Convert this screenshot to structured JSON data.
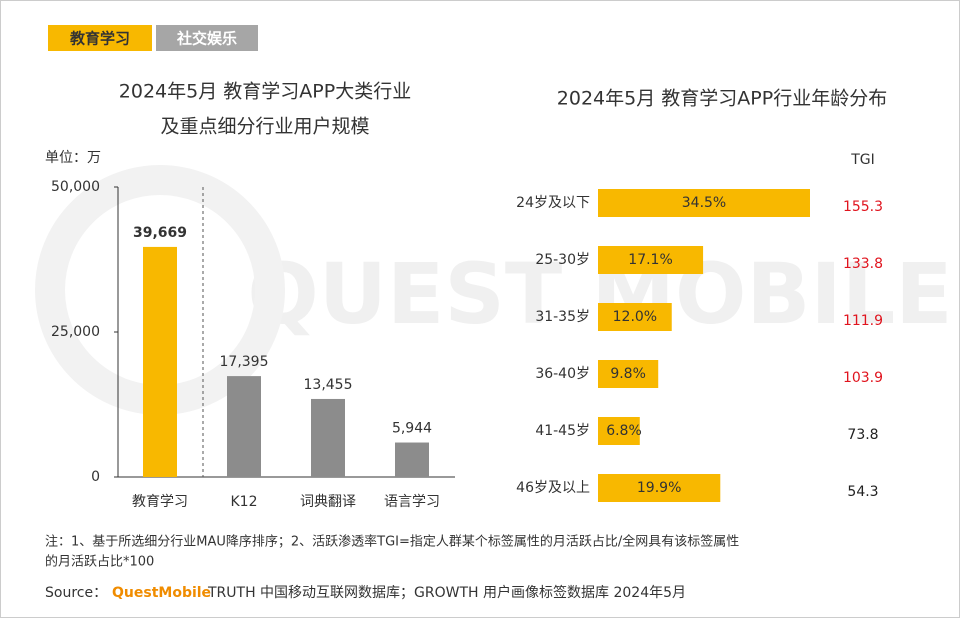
{
  "tabs": [
    "教育学习",
    "社交娱乐"
  ],
  "watermark": "QUEST MOBILE",
  "chart_data": [
    {
      "type": "bar",
      "title": [
        "2024年5月 教育学习APP大类行业",
        "及重点细分行业用户规模"
      ],
      "unit_label": "单位：万",
      "categories": [
        "教育学习",
        "K12",
        "词典翻译",
        "语言学习"
      ],
      "values": [
        39669,
        17395,
        13455,
        5944
      ],
      "value_labels": [
        "39,669",
        "17,395",
        "13,455",
        "5,944"
      ],
      "colors": [
        "#f8b800",
        "#8c8c8c",
        "#8c8c8c",
        "#8c8c8c"
      ],
      "ylim": [
        0,
        50000
      ],
      "yticks": [
        0,
        {
          "value": 25000,
          "label": "25,000"
        },
        {
          "value": 50000,
          "label": "50,000"
        }
      ]
    },
    {
      "type": "hbar",
      "title": "2024年5月 教育学习APP行业年龄分布",
      "categories": [
        "24岁及以下",
        "25-30岁",
        "31-35岁",
        "36-40岁",
        "41-45岁",
        "46岁及以上"
      ],
      "values": [
        34.5,
        17.1,
        12.0,
        9.8,
        6.8,
        19.9
      ],
      "value_labels": [
        "34.5%",
        "17.1%",
        "12.0%",
        "9.8%",
        "6.8%",
        "19.9%"
      ],
      "color": "#f8b800",
      "tgi_label": "TGI",
      "tgi": [
        155.3,
        133.8,
        111.9,
        103.9,
        73.8,
        54.3
      ],
      "tgi_colors": [
        "#e0141e",
        "#e0141e",
        "#e0141e",
        "#e0141e",
        "#222222",
        "#222222"
      ]
    }
  ],
  "note_lines": [
    "注：1、基于所选细分行业MAU降序排序；2、活跃渗透率TGI=指定人群某个标签属性的月活跃占比/全网具有该标签属性",
    "的月活跃占比*100"
  ],
  "source": {
    "label": "Source：",
    "brand": "QuestMobile",
    "text": "TRUTH 中国移动互联网数据库；GROWTH 用户画像标签数据库 2024年5月"
  }
}
